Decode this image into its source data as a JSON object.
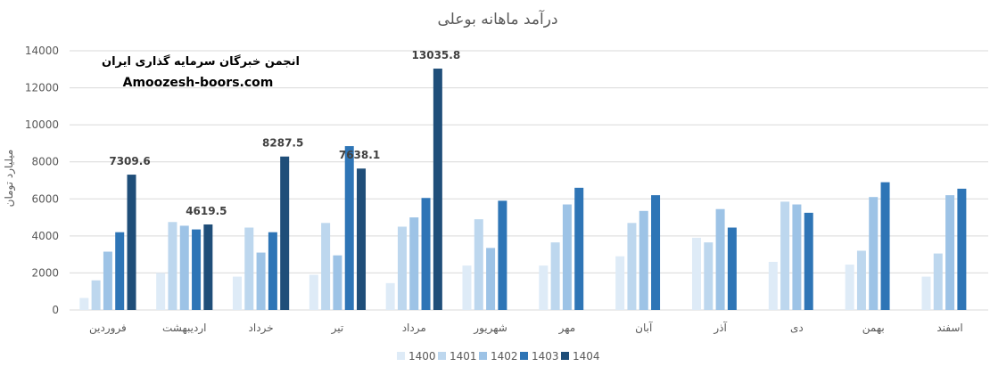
{
  "chart_data": {
    "type": "bar",
    "title": "درآمد ماهانه بوعلی",
    "ylabel": "میلیارد تومان",
    "xlabel": "",
    "ylim": [
      0,
      14000
    ],
    "yticks": [
      0,
      2000,
      4000,
      6000,
      8000,
      10000,
      12000,
      14000
    ],
    "grid": "horizontal",
    "legend_position": "bottom",
    "categories": [
      "فروردین",
      "اردیبهشت",
      "خرداد",
      "تیر",
      "مرداد",
      "شهریور",
      "مهر",
      "آبان",
      "آذر",
      "دی",
      "بهمن",
      "اسفند"
    ],
    "series": [
      {
        "name": "1400",
        "color": "#deebf7",
        "values": [
          650,
          2000,
          1800,
          1900,
          1450,
          2400,
          2400,
          2900,
          3900,
          2600,
          2450,
          1800
        ]
      },
      {
        "name": "1401",
        "color": "#bdd7ee",
        "values": [
          1600,
          4750,
          4450,
          4700,
          4500,
          4900,
          3650,
          4700,
          3650,
          5850,
          3200,
          3050
        ]
      },
      {
        "name": "1402",
        "color": "#9dc3e6",
        "values": [
          3150,
          4550,
          3100,
          2950,
          5000,
          3350,
          5700,
          5350,
          5450,
          5700,
          6100,
          6200
        ]
      },
      {
        "name": "1403",
        "color": "#2e75b6",
        "values": [
          4200,
          4350,
          4200,
          8850,
          6050,
          5900,
          6600,
          6200,
          4450,
          5250,
          6900,
          6550
        ]
      },
      {
        "name": "1404",
        "color": "#1f4e79",
        "values": [
          7309.6,
          4619.5,
          8287.5,
          7638.1,
          13035.8,
          null,
          null,
          null,
          null,
          null,
          null,
          null
        ]
      }
    ],
    "data_labels": [
      {
        "series": "1404",
        "category": "فروردین",
        "text": "7309.6"
      },
      {
        "series": "1404",
        "category": "اردیبهشت",
        "text": "4619.5"
      },
      {
        "series": "1404",
        "category": "خرداد",
        "text": "8287.5"
      },
      {
        "series": "1404",
        "category": "تیر",
        "text": "7638.1"
      },
      {
        "series": "1404",
        "category": "مرداد",
        "text": "13035.8"
      }
    ]
  },
  "watermark": {
    "line1": "انجمن خبرگان سرمایه گذاری ایران",
    "line2": "Amoozesh-boors.com"
  }
}
